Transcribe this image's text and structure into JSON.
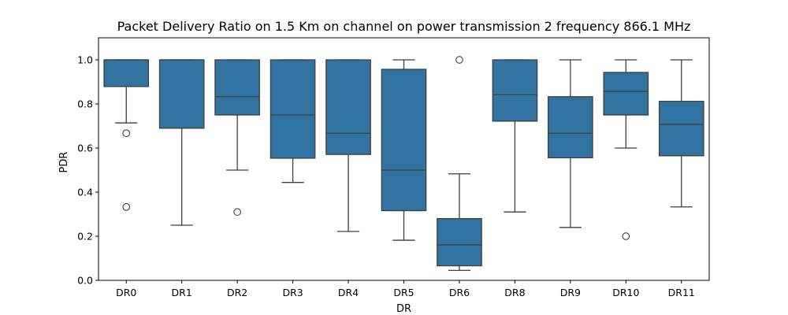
{
  "chart_data": {
    "type": "box",
    "title": "Packet Delivery Ratio on 1.5 Km on channel on power transmission 2 frequency 866.1 MHz",
    "xlabel": "DR",
    "ylabel": "PDR",
    "ylim": [
      0.0,
      1.1
    ],
    "yticks": [
      "0.0",
      "0.2",
      "0.4",
      "0.6",
      "0.8",
      "1.0"
    ],
    "grid": false,
    "box_color": "#3274a1",
    "line_color": "#3f3f3f",
    "categories": [
      "DR0",
      "DR1",
      "DR2",
      "DR3",
      "DR4",
      "DR5",
      "DR6",
      "DR8",
      "DR9",
      "DR10",
      "DR11"
    ],
    "boxes": [
      {
        "category": "DR0",
        "whisker_low": 0.714,
        "q1": 0.879,
        "median": 1.0,
        "q3": 1.0,
        "whisker_high": 1.0,
        "outliers": [
          0.667,
          0.333
        ]
      },
      {
        "category": "DR1",
        "whisker_low": 0.25,
        "q1": 0.69,
        "median": 1.0,
        "q3": 1.0,
        "whisker_high": 1.0,
        "outliers": []
      },
      {
        "category": "DR2",
        "whisker_low": 0.5,
        "q1": 0.75,
        "median": 0.833,
        "q3": 1.0,
        "whisker_high": 1.0,
        "outliers": [
          0.31
        ]
      },
      {
        "category": "DR3",
        "whisker_low": 0.444,
        "q1": 0.554,
        "median": 0.75,
        "q3": 1.0,
        "whisker_high": 1.0,
        "outliers": []
      },
      {
        "category": "DR4",
        "whisker_low": 0.222,
        "q1": 0.571,
        "median": 0.667,
        "q3": 1.0,
        "whisker_high": 1.0,
        "outliers": []
      },
      {
        "category": "DR5",
        "whisker_low": 0.182,
        "q1": 0.316,
        "median": 0.5,
        "q3": 0.957,
        "whisker_high": 1.0,
        "outliers": []
      },
      {
        "category": "DR6",
        "whisker_low": 0.045,
        "q1": 0.066,
        "median": 0.161,
        "q3": 0.28,
        "whisker_high": 0.483,
        "outliers": [
          1.0
        ]
      },
      {
        "category": "DR8",
        "whisker_low": 0.31,
        "q1": 0.722,
        "median": 0.842,
        "q3": 1.0,
        "whisker_high": 1.0,
        "outliers": []
      },
      {
        "category": "DR9",
        "whisker_low": 0.24,
        "q1": 0.556,
        "median": 0.667,
        "q3": 0.833,
        "whisker_high": 1.0,
        "outliers": []
      },
      {
        "category": "DR10",
        "whisker_low": 0.6,
        "q1": 0.75,
        "median": 0.857,
        "q3": 0.943,
        "whisker_high": 1.0,
        "outliers": [
          0.2
        ]
      },
      {
        "category": "DR11",
        "whisker_low": 0.333,
        "q1": 0.565,
        "median": 0.707,
        "q3": 0.812,
        "whisker_high": 1.0,
        "outliers": []
      }
    ]
  }
}
